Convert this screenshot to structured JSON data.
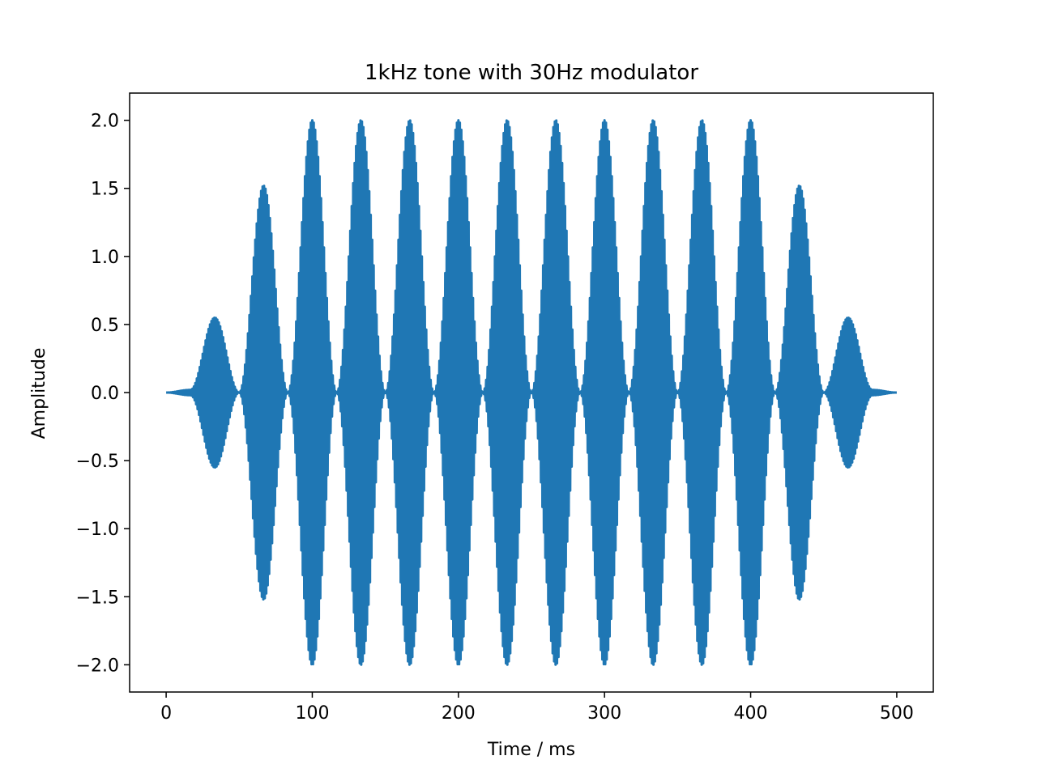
{
  "chart_data": {
    "type": "line",
    "title": "1kHz tone with 30Hz modulator",
    "xlabel": "Time / ms",
    "ylabel": "Amplitude",
    "xlim": [
      -25,
      525
    ],
    "ylim": [
      -2.2,
      2.2
    ],
    "grid": false,
    "legend": "none",
    "xticks": [
      0,
      100,
      200,
      300,
      400,
      500
    ],
    "yticks": [
      2.0,
      1.5,
      1.0,
      0.5,
      0.0,
      -0.5,
      -1.0,
      -1.5,
      -2.0
    ],
    "xtick_labels": [
      "0",
      "100",
      "200",
      "300",
      "400",
      "500"
    ],
    "ytick_labels": [
      "2.0",
      "1.5",
      "1.0",
      "0.5",
      "0.0",
      "−0.5",
      "−1.0",
      "−1.5",
      "−2.0"
    ],
    "series": [
      {
        "color": "#1f77b4",
        "carrier_frequency_hz": 1000,
        "modulator_frequency_hz": 30,
        "x": [
          0,
          16.7,
          33.3,
          50,
          66.7,
          83.3,
          100,
          116.7,
          133.3,
          150,
          166.7,
          183.3,
          200,
          216.7,
          233.3,
          250,
          266.7,
          283.3,
          300,
          316.7,
          333.3,
          350,
          366.7,
          383.3,
          400,
          416.7,
          433.3,
          450,
          466.7,
          483.3,
          500
        ],
        "envelope": [
          0,
          0.02,
          0.55,
          0,
          1.52,
          0,
          2.0,
          0,
          2.0,
          0,
          2.0,
          0,
          2.0,
          0,
          2.0,
          0,
          2.0,
          0,
          2.0,
          0,
          2.0,
          0,
          2.0,
          0,
          2.0,
          0,
          1.52,
          0,
          0.55,
          0.02,
          0
        ]
      }
    ]
  }
}
